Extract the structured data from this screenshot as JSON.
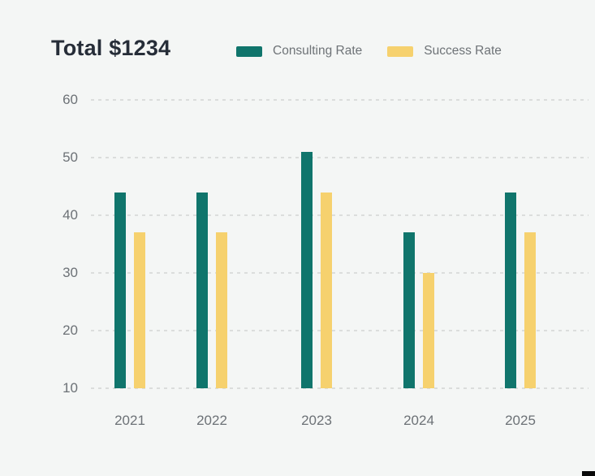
{
  "page": {
    "background_color": "#f4f6f5"
  },
  "header": {
    "title": "Total $1234",
    "legend": [
      {
        "label": "Consulting Rate",
        "color": "#10756c"
      },
      {
        "label": "Success Rate",
        "color": "#f6d16e"
      }
    ]
  },
  "chart_data": {
    "type": "bar",
    "title": "Total $1234",
    "categories": [
      "2021",
      "2022",
      "2023",
      "2024",
      "2025"
    ],
    "series": [
      {
        "name": "Consulting Rate",
        "color": "#10756c",
        "values": [
          44,
          44,
          51,
          37,
          44
        ]
      },
      {
        "name": "Success Rate",
        "color": "#f6d16e",
        "values": [
          37,
          37,
          44,
          30,
          37
        ]
      }
    ],
    "xlabel": "",
    "ylabel": "",
    "y_ticks": [
      10,
      20,
      30,
      40,
      50,
      60
    ],
    "ylim": [
      10,
      60
    ],
    "bars_baseline": 10,
    "grid": "horizontal-dashed",
    "gridline_color": "#dbdddc",
    "axis_text_color": "#6c7176",
    "legend_position": "top"
  }
}
